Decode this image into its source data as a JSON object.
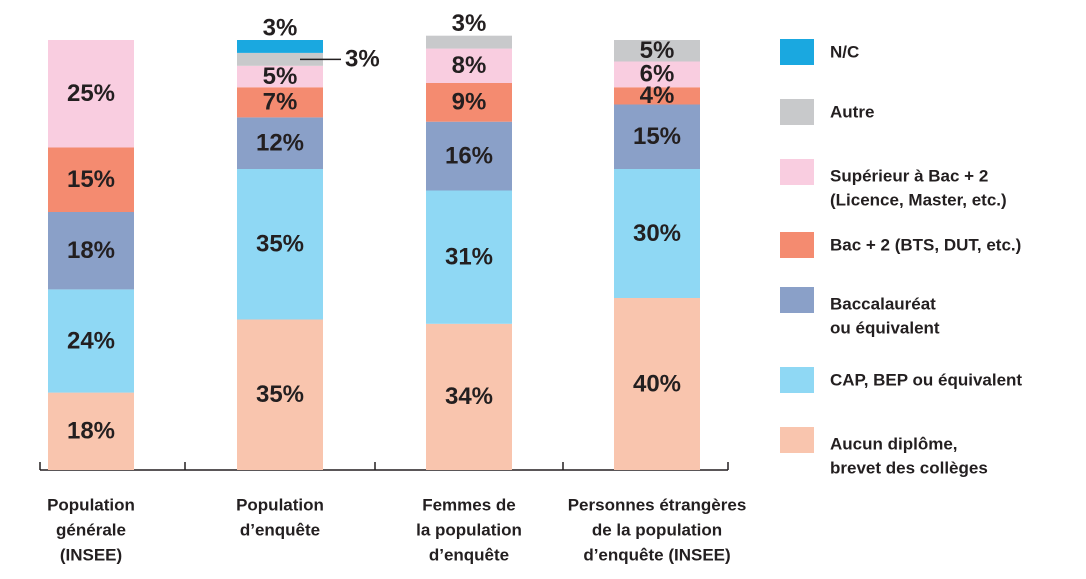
{
  "chart_data": {
    "type": "stacked_bar",
    "categories": [
      [
        "Population",
        "générale",
        "(INSEE)"
      ],
      [
        "Population",
        "d’enquête"
      ],
      [
        "Femmes de",
        "la population",
        "d’enquête"
      ],
      [
        "Personnes étrangères",
        "de la population",
        "d’enquête (INSEE)"
      ]
    ],
    "ylim": [
      0,
      100
    ],
    "series": [
      {
        "name": [
          "Aucun diplôme,",
          "brevet des collèges"
        ],
        "color": "#f9c5ae",
        "values": [
          18,
          35,
          34,
          40
        ],
        "value_labels": [
          "18%",
          "35%",
          "34%",
          "40%"
        ]
      },
      {
        "name": [
          "CAP, BEP ou équivalent"
        ],
        "color": "#8fd8f4",
        "values": [
          24,
          35,
          31,
          30
        ],
        "value_labels": [
          "24%",
          "35%",
          "31%",
          "30%"
        ]
      },
      {
        "name": [
          "Baccalauréat",
          "ou équivalent"
        ],
        "color": "#8aa0c8",
        "values": [
          18,
          12,
          16,
          15
        ],
        "value_labels": [
          "18%",
          "12%",
          "16%",
          "15%"
        ]
      },
      {
        "name": [
          "Bac + 2 (BTS, DUT, etc.)"
        ],
        "color": "#f48b70",
        "values": [
          15,
          7,
          9,
          4
        ],
        "value_labels": [
          "15%",
          "7%",
          "9%",
          "4%"
        ]
      },
      {
        "name": [
          "Supérieur à Bac + 2",
          "(Licence, Master, etc.)"
        ],
        "color": "#f9cde0",
        "values": [
          25,
          5,
          8,
          6
        ],
        "value_labels": [
          "25%",
          "5%",
          "8%",
          "6%"
        ]
      },
      {
        "name": [
          "Autre"
        ],
        "color": "#c8c9cb",
        "values": [
          null,
          3,
          3,
          5
        ],
        "value_labels": [
          null,
          "3%",
          "3%",
          "5%"
        ]
      },
      {
        "name": [
          "N/C"
        ],
        "color": "#1aa8e0",
        "values": [
          null,
          3,
          null,
          null
        ],
        "value_labels": [
          null,
          "3%",
          null,
          null
        ]
      }
    ]
  }
}
